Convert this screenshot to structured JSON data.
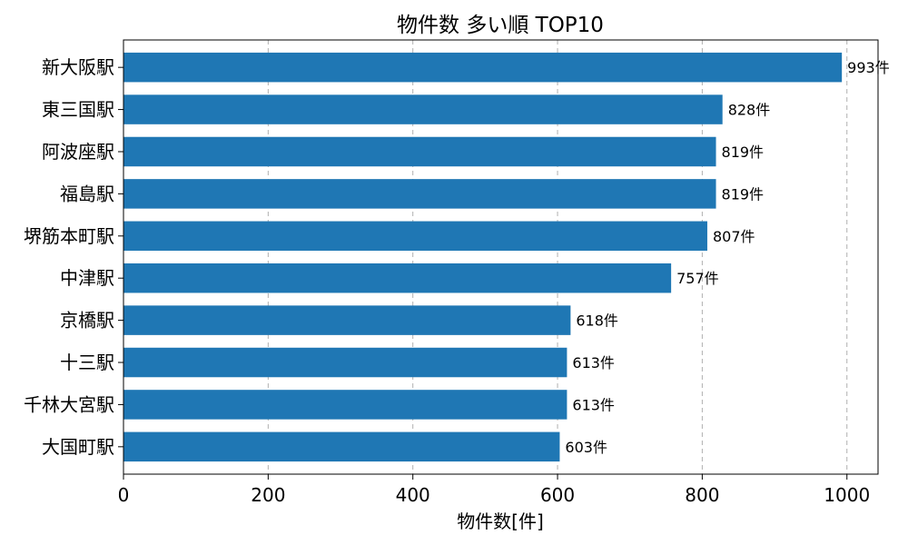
{
  "chart_data": {
    "type": "bar",
    "orientation": "horizontal",
    "title": "物件数 多い順 TOP10",
    "xlabel": "物件数[件]",
    "ylabel": "",
    "categories": [
      "新大阪駅",
      "東三国駅",
      "阿波座駅",
      "福島駅",
      "堺筋本町駅",
      "中津駅",
      "京橋駅",
      "十三駅",
      "千林大宮駅",
      "大国町駅"
    ],
    "values": [
      993,
      828,
      819,
      819,
      807,
      757,
      618,
      613,
      613,
      603
    ],
    "value_suffix": "件",
    "xlim": [
      0,
      1043
    ],
    "xticks": [
      0,
      200,
      400,
      600,
      800,
      1000
    ],
    "grid": "x-dashed",
    "bar_color": "#1f77b4"
  }
}
